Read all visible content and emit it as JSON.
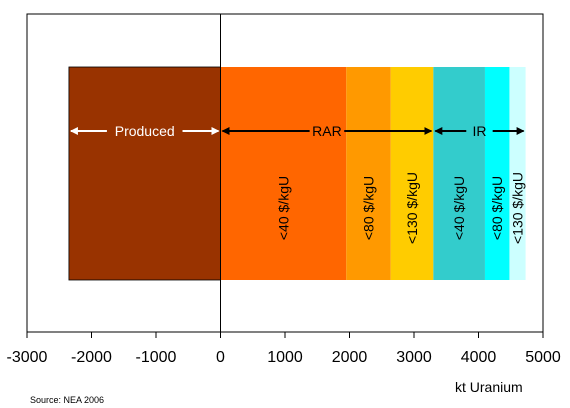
{
  "chart_data": {
    "type": "bar",
    "orientation": "horizontal-stacked",
    "xlabel": "kt Uranium",
    "xlim": [
      -3000,
      5000
    ],
    "xticks": [
      -3000,
      -2000,
      -1000,
      0,
      1000,
      2000,
      3000,
      4000,
      5000
    ],
    "xtick_labels": [
      "-3000",
      "-2000",
      "-1000",
      "0",
      "1000",
      "2000",
      "3000",
      "4000",
      "5000"
    ],
    "grid": false,
    "segments": [
      {
        "name": "",
        "start": -2350,
        "end": 0,
        "value": 2350,
        "color": "#993300",
        "label": ""
      },
      {
        "name": "",
        "start": 0,
        "end": 1950,
        "value": 1950,
        "color": "#ff6600",
        "label": "<40 $/kgU"
      },
      {
        "name": "",
        "start": 1950,
        "end": 2640,
        "value": 690,
        "color": "#ff9900",
        "label": "<80 $/kgU"
      },
      {
        "name": "",
        "start": 2640,
        "end": 3300,
        "value": 660,
        "color": "#ffcc00",
        "label": "<130 $/kgU"
      },
      {
        "name": "",
        "start": 3300,
        "end": 4100,
        "value": 800,
        "color": "#33cccc",
        "label": "<40 $/kgU"
      },
      {
        "name": "",
        "start": 4100,
        "end": 4480,
        "value": 380,
        "color": "#00ffff",
        "label": "<80 $/kgU"
      },
      {
        "name": "",
        "start": 4480,
        "end": 4730,
        "value": 250,
        "color": "#ccffff",
        "label": "<130 $/kgU"
      }
    ],
    "spans": [
      {
        "label": "Produced",
        "start": -2350,
        "end": 0,
        "color": "#ffffff"
      },
      {
        "label": "RAR",
        "start": 0,
        "end": 3300,
        "color": "#000000"
      },
      {
        "label": "IR",
        "start": 3300,
        "end": 4730,
        "color": "#000000"
      }
    ]
  },
  "source": "Source: NEA 2006"
}
